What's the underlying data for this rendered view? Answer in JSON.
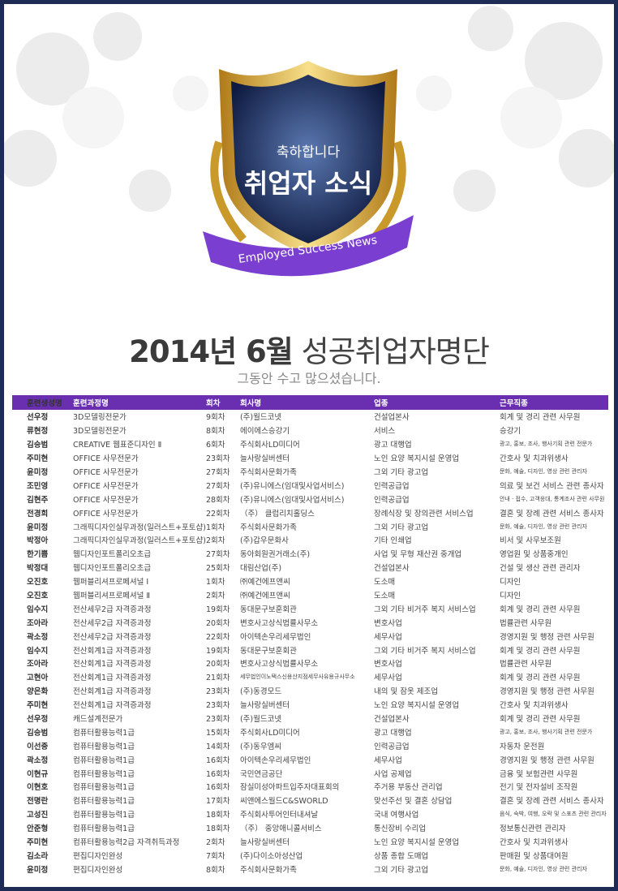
{
  "emblem": {
    "congrats": "축하합니다",
    "title": "취업자 소식",
    "ribbon": "Employed Success News"
  },
  "heading": {
    "year_month": "2014년 6월",
    "rest": "성공취업자명단",
    "subtitle": "그동안 수고 많으셨습니다."
  },
  "colors": {
    "header_bg": "#6a2fb0",
    "frame": "#1d2b55",
    "ribbon": "#7a3fd0",
    "gold": "#d9a830"
  },
  "table": {
    "headers": [
      "훈련생성명",
      "훈련과정명",
      "회차",
      "회사명",
      "업종",
      "근무직종"
    ],
    "rows": [
      [
        "선우정",
        "3D모델링전문가",
        "9회차",
        "(주)월드코넷",
        "건설업본사",
        "회계 및 경리 관련 사무원"
      ],
      [
        "류현정",
        "3D모델링전문가",
        "8회차",
        "에이에스승강기",
        "서비스",
        "승강기"
      ],
      [
        "김승범",
        "CREATIVE 웹표준디자인 Ⅱ",
        "6회차",
        "주식회사LD미디어",
        "광고 대행업",
        "광고, 홍보, 조사, 행사기획 관련 전문가"
      ],
      [
        "주미현",
        "OFFICE 사무전문가",
        "23회차",
        "늘사랑실버센터",
        "노인 요양 복지시설 운영업",
        "간호사 및 치과위생사"
      ],
      [
        "윤미정",
        "OFFICE 사무전문가",
        "27회차",
        "주식회사문화가족",
        "그외 기타 광고업",
        "문화, 예술, 디자인, 영상 관련 관리자"
      ],
      [
        "조민영",
        "OFFICE 사무전문가",
        "27회차",
        "(주)유니에스(임대및사업서비스)",
        "인력공급업",
        "의료 및 보건 서비스 관련 종사자"
      ],
      [
        "김현주",
        "OFFICE 사무전문가",
        "28회차",
        "(주)유니에스(임대및사업서비스)",
        "인력공급업",
        "안내 · 접수, 고객응대, 통계조사 관련 사무원"
      ],
      [
        "전경희",
        "OFFICE 사무전문가",
        "22회차",
        "（주） 클럽리치홀딩스",
        "장례식장 및 장의관련 서비스업",
        "결혼 및 장례 관련 서비스 종사자"
      ],
      [
        "윤미정",
        "그래픽디자인실무과정(일러스트+포토샵)",
        "1회차",
        "주식회사문화가족",
        "그외 기타 광고업",
        "문화, 예술, 디자인, 영상 관련 관리자"
      ],
      [
        "박정아",
        "그래픽디자인실무과정(일러스트+포토샵)",
        "2회차",
        "(주)갑우문화사",
        "기타 인쇄업",
        "비서 및 사무보조원"
      ],
      [
        "한기쁨",
        "웹디자인포트폴리오초급",
        "27회차",
        "동아회원권거래소(주)",
        "사업 및 무형 재산권 중개업",
        "영업원 및 상품중개인"
      ],
      [
        "박정대",
        "웹디자인포트폴리오초급",
        "25회차",
        "대림산업(주)",
        "건설업본사",
        "건설 및 생산 관련 관리자"
      ],
      [
        "오진호",
        "웹퍼블리셔프로페셔널 Ⅰ",
        "1회차",
        "㈜예건에프앤씨",
        "도소매",
        "디자인"
      ],
      [
        "오진호",
        "웹퍼블리셔프로페셔널 Ⅱ",
        "2회차",
        "㈜예건에프앤씨",
        "도소매",
        "디자인"
      ],
      [
        "임수지",
        "전산세무2급 자격증과정",
        "19회차",
        "동대문구보훈회관",
        "그외 기타 비거주 복지 서비스업",
        "회계 및 경리 관련 사무원"
      ],
      [
        "조아라",
        "전산세무2급 자격증과정",
        "20회차",
        "변호사고상식법률사무소",
        "변호사업",
        "법률관련 사무원"
      ],
      [
        "곽소정",
        "전산세무2급 자격증과정",
        "22회차",
        "아이텍손우리세무법인",
        "세무사업",
        "경영지원 및 행정 관련 사무원"
      ],
      [
        "임수지",
        "전산회계1급 자격증과정",
        "19회차",
        "동대문구보훈회관",
        "그외 기타 비거주 복지 서비스업",
        "회계 및 경리 관련 사무원"
      ],
      [
        "조아라",
        "전산회계1급 자격증과정",
        "20회차",
        "변호사고상식법률사무소",
        "변호사업",
        "법률관련 사무원"
      ],
      [
        "고현아",
        "전산회계1급 자격증과정",
        "21회차",
        "세무법인이노택스신용산지점세무사유용규사무소",
        "세무사업",
        "회계 및 경리 관련 사무원"
      ],
      [
        "양은화",
        "전산회계1급 자격증과정",
        "23회차",
        "(주)동경모드",
        "내의 및 잠옷 제조업",
        "경영지원 및 행정 관련 사무원"
      ],
      [
        "주미현",
        "전산회계1급 자격증과정",
        "23회차",
        "늘사랑실버센터",
        "노인 요양 복지시설 운영업",
        "간호사 및 치과위생사"
      ],
      [
        "선우정",
        "캐드설계전문가",
        "23회차",
        "(주)월드코넷",
        "건설업본사",
        "회계 및 경리 관련 사무원"
      ],
      [
        "김승범",
        "컴퓨터활용능력1급",
        "15회차",
        "주식회사LD미디어",
        "광고 대행업",
        "광고, 홍보, 조사, 행사기획 관련 전문가"
      ],
      [
        "이선중",
        "컴퓨터활용능력1급",
        "14회차",
        "(주)동우엠씨",
        "인력공급업",
        "자동차 운전원"
      ],
      [
        "곽소정",
        "컴퓨터활용능력1급",
        "16회차",
        "아이텍손우리세무법인",
        "세무사업",
        "경영지원 및 행정 관련 사무원"
      ],
      [
        "이현규",
        "컴퓨터활용능력1급",
        "16회차",
        "국민연금공단",
        "사업 공제업",
        "금융 및 보험관련 사무원"
      ],
      [
        "이현호",
        "컴퓨터활용능력1급",
        "16회차",
        "잠실미성아파트입주자대표회의",
        "주거용 부동산 관리업",
        "전기 및 전자설비 조작원"
      ],
      [
        "전명란",
        "컴퓨터활용능력1급",
        "17회차",
        "씨앤에스월드C&SWORLD",
        "맞선주선 및 결혼 상담업",
        "결혼 및 장례 관련 서비스 종사자"
      ],
      [
        "고성진",
        "컴퓨터활용능력1급",
        "18회차",
        "주식회사투어인터내셔날",
        "국내 여행사업",
        "음식, 숙박, 여행, 오락 및 스포츠 관련 관리자"
      ],
      [
        "안준형",
        "컴퓨터활용능력1급",
        "18회차",
        "（주） 중앙애니콜서비스",
        "통신장비 수리업",
        "정보통신관련 관리자"
      ],
      [
        "주미현",
        "컴퓨터활용능력2급 자격취득과정",
        "2회차",
        "늘사랑실버센터",
        "노인 요양 복지시설 운영업",
        "간호사 및 치과위생사"
      ],
      [
        "김소라",
        "편집디자인완성",
        "7회차",
        "(주)다이소아성산업",
        "상품 종합 도매업",
        "판매원 및 상품대여원"
      ],
      [
        "윤미정",
        "편집디자인완성",
        "8회차",
        "주식회사문화가족",
        "그외 기타 광고업",
        "문화, 예술, 디자인, 영상 관련 관리자"
      ]
    ]
  }
}
